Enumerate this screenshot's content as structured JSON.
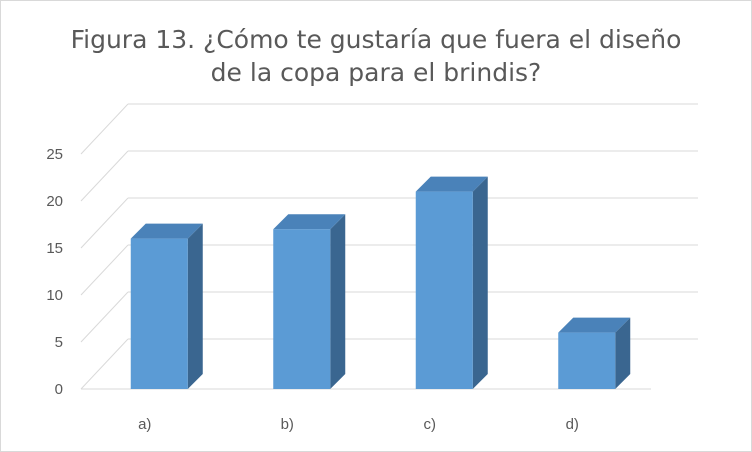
{
  "chart_data": {
    "type": "bar",
    "title_lines": [
      "Figura 13. ¿Cómo te gustaría que fuera el diseño",
      "de la copa para el brindis?"
    ],
    "categories": [
      "a)",
      "b)",
      "c)",
      "d)"
    ],
    "values": [
      16,
      17,
      21,
      6
    ],
    "ylim": [
      0,
      25
    ],
    "yticks": [
      0,
      5,
      10,
      15,
      20,
      25
    ],
    "xlabel": "",
    "ylabel": "",
    "grid": true,
    "legend": "none",
    "style": "3d-column",
    "colors": {
      "bar_front": "#5b9bd5",
      "bar_side": "#3a6690",
      "bar_top": "#4a82b9",
      "grid": "#d9d9d9",
      "text": "#595959"
    }
  }
}
